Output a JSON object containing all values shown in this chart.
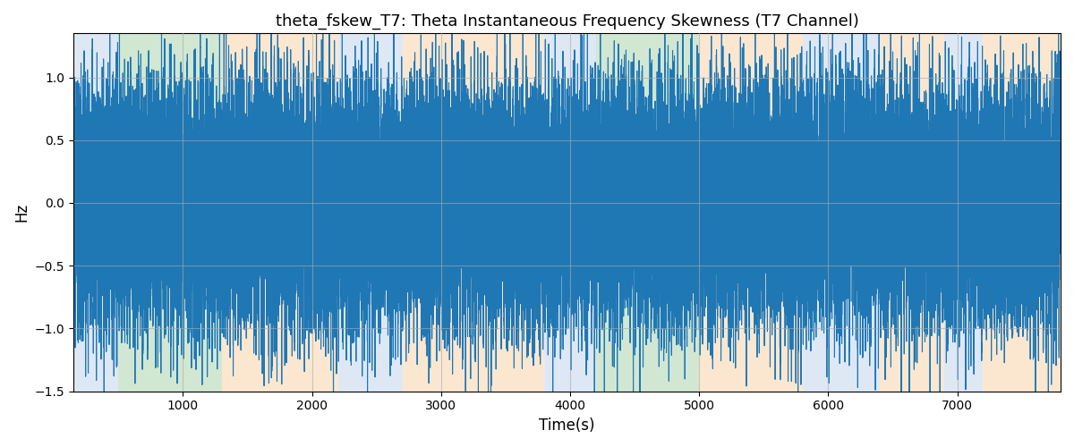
{
  "title": "theta_fskew_T7: Theta Instantaneous Frequency Skewness (T7 Channel)",
  "xlabel": "Time(s)",
  "ylabel": "Hz",
  "xlim": [
    150,
    7800
  ],
  "ylim": [
    -1.5,
    1.35
  ],
  "bg_regions": [
    {
      "xstart": 150,
      "xend": 500,
      "color": "#aec6e8",
      "alpha": 0.4
    },
    {
      "xstart": 500,
      "xend": 1300,
      "color": "#90c490",
      "alpha": 0.4
    },
    {
      "xstart": 1300,
      "xend": 2200,
      "color": "#f5c48a",
      "alpha": 0.4
    },
    {
      "xstart": 2200,
      "xend": 2700,
      "color": "#aec6e8",
      "alpha": 0.4
    },
    {
      "xstart": 2700,
      "xend": 3800,
      "color": "#f5c48a",
      "alpha": 0.4
    },
    {
      "xstart": 3800,
      "xend": 4200,
      "color": "#aec6e8",
      "alpha": 0.4
    },
    {
      "xstart": 4200,
      "xend": 5000,
      "color": "#90c490",
      "alpha": 0.4
    },
    {
      "xstart": 5000,
      "xend": 5800,
      "color": "#f5c48a",
      "alpha": 0.4
    },
    {
      "xstart": 5800,
      "xend": 6400,
      "color": "#aec6e8",
      "alpha": 0.4
    },
    {
      "xstart": 6400,
      "xend": 6900,
      "color": "#f5c48a",
      "alpha": 0.4
    },
    {
      "xstart": 6900,
      "xend": 7200,
      "color": "#aec6e8",
      "alpha": 0.4
    },
    {
      "xstart": 7200,
      "xend": 7800,
      "color": "#f5c48a",
      "alpha": 0.4
    }
  ],
  "line_color": "#1f77b4",
  "line_width": 0.8,
  "grid": true,
  "grid_color": "#aaaaaa",
  "grid_alpha": 0.6,
  "title_fontsize": 13,
  "xlabel_fontsize": 12,
  "ylabel_fontsize": 12,
  "seed": 42,
  "n_points": 76000,
  "x_start": 150,
  "x_end": 7800
}
